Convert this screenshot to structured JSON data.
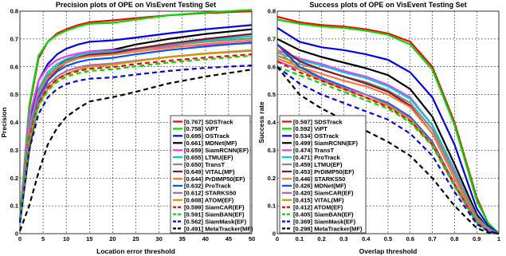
{
  "chart_data": [
    {
      "type": "line",
      "title": "Precision plots of OPE on VisEvent Testing Set",
      "xlabel": "Location error threshold",
      "ylabel": "Precision",
      "xlim": [
        0,
        50
      ],
      "ylim": [
        0,
        0.8
      ],
      "xticks": [
        "0",
        "5",
        "10",
        "15",
        "20",
        "25",
        "30",
        "35",
        "40",
        "45",
        "50"
      ],
      "yticks": [
        "0",
        "0.1",
        "0.2",
        "0.3",
        "0.4",
        "0.5",
        "0.6",
        "0.7",
        "0.8"
      ],
      "grid": true,
      "legend_position": "bottom-right",
      "series": [
        {
          "name": "SDSTrack",
          "score": "[0.767]",
          "color": "#ff0000",
          "style": "solid",
          "values": [
            0.05,
            0.45,
            0.63,
            0.69,
            0.72,
            0.735,
            0.75,
            0.76,
            0.767,
            0.775,
            0.785,
            0.793,
            0.8
          ]
        },
        {
          "name": "ViPT",
          "score": "[0.758]",
          "color": "#00dd00",
          "style": "solid",
          "values": [
            0.05,
            0.46,
            0.64,
            0.69,
            0.715,
            0.73,
            0.745,
            0.755,
            0.758,
            0.77,
            0.785,
            0.795,
            0.805
          ]
        },
        {
          "name": "OSTrack",
          "score": "[0.695]",
          "color": "#0000ff",
          "style": "solid",
          "values": [
            0.05,
            0.38,
            0.55,
            0.61,
            0.645,
            0.665,
            0.68,
            0.69,
            0.695,
            0.705,
            0.72,
            0.735,
            0.75
          ]
        },
        {
          "name": "MDNet(MF)",
          "score": "[0.661]",
          "color": "#000000",
          "style": "solid",
          "values": [
            0.04,
            0.3,
            0.48,
            0.56,
            0.6,
            0.625,
            0.643,
            0.655,
            0.661,
            0.68,
            0.7,
            0.718,
            0.735
          ]
        },
        {
          "name": "SiamRCNN(EF)",
          "score": "[0.659]",
          "color": "#ff33ff",
          "style": "solid",
          "values": [
            0.05,
            0.42,
            0.55,
            0.6,
            0.625,
            0.638,
            0.648,
            0.655,
            0.659,
            0.665,
            0.672,
            0.678,
            0.685
          ]
        },
        {
          "name": "LTMU(EF)",
          "score": "[0.655]",
          "color": "#00cccc",
          "style": "solid",
          "values": [
            0.05,
            0.38,
            0.52,
            0.58,
            0.61,
            0.628,
            0.642,
            0.65,
            0.655,
            0.665,
            0.68,
            0.695,
            0.71
          ]
        },
        {
          "name": "TransT",
          "score": "[0.650]",
          "color": "#888888",
          "style": "solid",
          "values": [
            0.05,
            0.37,
            0.51,
            0.57,
            0.6,
            0.62,
            0.635,
            0.645,
            0.65,
            0.662,
            0.676,
            0.69,
            0.702
          ]
        },
        {
          "name": "VITAL(MF)",
          "score": "[0.649]",
          "color": "#7a1a30",
          "style": "solid",
          "values": [
            0.04,
            0.3,
            0.47,
            0.55,
            0.59,
            0.615,
            0.632,
            0.643,
            0.649,
            0.665,
            0.683,
            0.7,
            0.718
          ]
        },
        {
          "name": "PrDIMP50(EF)",
          "score": "[0.644]",
          "color": "#ff7733",
          "style": "solid",
          "values": [
            0.05,
            0.36,
            0.5,
            0.56,
            0.595,
            0.615,
            0.63,
            0.638,
            0.644,
            0.655,
            0.668,
            0.682,
            0.695
          ]
        },
        {
          "name": "ProTrack",
          "score": "[0.632]",
          "color": "#0055ff",
          "style": "solid",
          "values": [
            0.05,
            0.35,
            0.49,
            0.55,
            0.583,
            0.603,
            0.617,
            0.626,
            0.632,
            0.645,
            0.66,
            0.673,
            0.688
          ]
        },
        {
          "name": "STARKS50",
          "score": "[0.612]",
          "color": "#aa66bb",
          "style": "solid",
          "values": [
            0.05,
            0.35,
            0.48,
            0.535,
            0.565,
            0.585,
            0.598,
            0.606,
            0.612,
            0.622,
            0.635,
            0.647,
            0.658
          ]
        },
        {
          "name": "ATOM(EF)",
          "score": "[0.608]",
          "color": "#cc9900",
          "style": "solid",
          "values": [
            0.05,
            0.33,
            0.46,
            0.52,
            0.555,
            0.575,
            0.59,
            0.6,
            0.608,
            0.62,
            0.635,
            0.648,
            0.66
          ]
        },
        {
          "name": "SiamCAR(EF)",
          "score": "[0.599]",
          "color": "#ff0000",
          "style": "dashed",
          "values": [
            0.05,
            0.34,
            0.47,
            0.525,
            0.555,
            0.573,
            0.585,
            0.593,
            0.599,
            0.61,
            0.622,
            0.633,
            0.645
          ]
        },
        {
          "name": "SiamBAN(EF)",
          "score": "[0.591]",
          "color": "#00dd00",
          "style": "dashed",
          "values": [
            0.05,
            0.33,
            0.46,
            0.515,
            0.546,
            0.565,
            0.577,
            0.585,
            0.591,
            0.602,
            0.615,
            0.627,
            0.64
          ]
        },
        {
          "name": "SiamMask(EF)",
          "score": "[0.562]",
          "color": "#0000ff",
          "style": "dashed",
          "values": [
            0.04,
            0.3,
            0.43,
            0.49,
            0.52,
            0.538,
            0.55,
            0.557,
            0.562,
            0.572,
            0.585,
            0.596,
            0.605
          ]
        },
        {
          "name": "MetaTracker(MF)",
          "score": "[0.491]",
          "color": "#000000",
          "style": "dashed",
          "values": [
            0.01,
            0.1,
            0.22,
            0.32,
            0.38,
            0.42,
            0.45,
            0.475,
            0.491,
            0.51,
            0.54,
            0.565,
            0.59
          ]
        }
      ],
      "x": [
        0,
        2,
        4,
        6,
        8,
        10,
        12.5,
        15,
        20,
        25,
        32,
        40,
        50
      ]
    },
    {
      "type": "line",
      "title": "Success plots of OPE on VisEvent Testing Set",
      "xlabel": "Overlap threshold",
      "ylabel": "Success rate",
      "xlim": [
        0,
        1
      ],
      "ylim": [
        0,
        0.8
      ],
      "xticks": [
        "0",
        "0.1",
        "0.2",
        "0.3",
        "0.4",
        "0.5",
        "0.6",
        "0.7",
        "0.8",
        "0.9",
        "1"
      ],
      "yticks": [
        "0",
        "0.1",
        "0.2",
        "0.3",
        "0.4",
        "0.5",
        "0.6",
        "0.7",
        "0.8"
      ],
      "grid": true,
      "legend_position": "bottom-left",
      "x": [
        0,
        0.1,
        0.2,
        0.3,
        0.4,
        0.5,
        0.6,
        0.7,
        0.8,
        0.9,
        0.95,
        1
      ],
      "series": [
        {
          "name": "SDSTrack",
          "score": "[0.597]",
          "color": "#ff0000",
          "style": "solid",
          "values": [
            0.78,
            0.76,
            0.75,
            0.745,
            0.735,
            0.72,
            0.69,
            0.6,
            0.4,
            0.13,
            0.04,
            0
          ]
        },
        {
          "name": "ViPT",
          "score": "[0.592]",
          "color": "#00dd00",
          "style": "solid",
          "values": [
            0.77,
            0.755,
            0.745,
            0.74,
            0.73,
            0.715,
            0.68,
            0.59,
            0.39,
            0.12,
            0.04,
            0
          ]
        },
        {
          "name": "OSTrack",
          "score": "[0.534]",
          "color": "#0000ff",
          "style": "solid",
          "values": [
            0.74,
            0.69,
            0.67,
            0.66,
            0.645,
            0.625,
            0.58,
            0.49,
            0.32,
            0.09,
            0.03,
            0
          ]
        },
        {
          "name": "SiamRCNN(EF)",
          "score": "[0.499]",
          "color": "#000000",
          "style": "solid",
          "values": [
            0.7,
            0.66,
            0.635,
            0.615,
            0.595,
            0.57,
            0.52,
            0.42,
            0.25,
            0.07,
            0.02,
            0
          ]
        },
        {
          "name": "TransT",
          "score": "[0.474]",
          "color": "#ff33ff",
          "style": "solid",
          "values": [
            0.66,
            0.63,
            0.61,
            0.585,
            0.565,
            0.535,
            0.49,
            0.39,
            0.23,
            0.06,
            0.02,
            0
          ]
        },
        {
          "name": "ProTrack",
          "score": "[0.471]",
          "color": "#00cccc",
          "style": "solid",
          "values": [
            0.65,
            0.625,
            0.605,
            0.58,
            0.56,
            0.53,
            0.485,
            0.39,
            0.225,
            0.06,
            0.02,
            0
          ]
        },
        {
          "name": "LTMU(EF)",
          "score": "[0.459]",
          "color": "#888888",
          "style": "solid",
          "values": [
            0.64,
            0.61,
            0.59,
            0.565,
            0.545,
            0.515,
            0.47,
            0.375,
            0.215,
            0.055,
            0.02,
            0
          ]
        },
        {
          "name": "PrDIMP50(EF)",
          "score": "[0.453]",
          "color": "#7a1a30",
          "style": "solid",
          "values": [
            0.68,
            0.62,
            0.59,
            0.565,
            0.54,
            0.51,
            0.46,
            0.36,
            0.2,
            0.05,
            0.015,
            0
          ]
        },
        {
          "name": "STARKS50",
          "score": "[0.446]",
          "color": "#ff7733",
          "style": "solid",
          "values": [
            0.63,
            0.6,
            0.575,
            0.55,
            0.53,
            0.5,
            0.455,
            0.36,
            0.2,
            0.05,
            0.015,
            0
          ]
        },
        {
          "name": "MDNet(MF)",
          "score": "[0.426]",
          "color": "#0055ff",
          "style": "solid",
          "values": [
            0.68,
            0.6,
            0.56,
            0.53,
            0.5,
            0.47,
            0.42,
            0.33,
            0.18,
            0.045,
            0.01,
            0
          ]
        },
        {
          "name": "SiamCAR(EF)",
          "score": "[0.420]",
          "color": "#aa66bb",
          "style": "solid",
          "values": [
            0.62,
            0.59,
            0.555,
            0.525,
            0.5,
            0.465,
            0.415,
            0.325,
            0.18,
            0.045,
            0.01,
            0
          ]
        },
        {
          "name": "VITAL(MF)",
          "score": "[0.415]",
          "color": "#cc9900",
          "style": "solid",
          "values": [
            0.66,
            0.59,
            0.55,
            0.52,
            0.49,
            0.46,
            0.41,
            0.32,
            0.175,
            0.04,
            0.01,
            0
          ]
        },
        {
          "name": "ATOM(EF)",
          "score": "[0.412]",
          "color": "#ff0000",
          "style": "dashed",
          "values": [
            0.62,
            0.58,
            0.55,
            0.52,
            0.49,
            0.455,
            0.405,
            0.32,
            0.175,
            0.04,
            0.01,
            0
          ]
        },
        {
          "name": "SiamBAN(EF)",
          "score": "[0.405]",
          "color": "#00dd00",
          "style": "dashed",
          "values": [
            0.6,
            0.57,
            0.54,
            0.51,
            0.48,
            0.45,
            0.4,
            0.315,
            0.17,
            0.04,
            0.01,
            0
          ]
        },
        {
          "name": "SiamMask(EF)",
          "score": "[0.369]",
          "color": "#0000ff",
          "style": "dashed",
          "values": [
            0.6,
            0.54,
            0.5,
            0.47,
            0.44,
            0.41,
            0.36,
            0.28,
            0.15,
            0.035,
            0.01,
            0
          ]
        },
        {
          "name": "MetaTracker(MF)",
          "score": "[0.298]",
          "color": "#000000",
          "style": "dashed",
          "values": [
            0.6,
            0.5,
            0.45,
            0.41,
            0.37,
            0.33,
            0.28,
            0.2,
            0.1,
            0.02,
            0.005,
            0
          ]
        }
      ]
    }
  ]
}
